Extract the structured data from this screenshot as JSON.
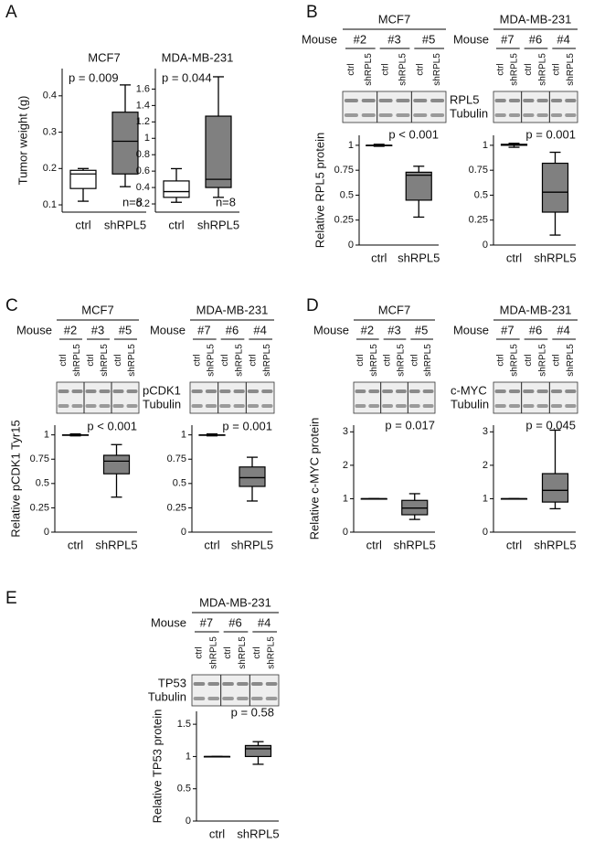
{
  "panel_letters": [
    "A",
    "B",
    "C",
    "D",
    "E"
  ],
  "blots": [
    {
      "cell_line": "MCF7",
      "mouse_label": "Mouse",
      "mice": [
        "#2",
        "#3",
        "#5"
      ],
      "lanes": [
        "ctrl",
        "shRPL5"
      ],
      "proteins": [
        "RPL5",
        "Tubulin"
      ]
    },
    {
      "cell_line": "MDA-MB-231",
      "mouse_label": "Mouse",
      "mice": [
        "#7",
        "#6",
        "#4"
      ],
      "lanes": [
        "ctrl",
        "shRPL5"
      ]
    },
    {
      "cell_line": "MCF7",
      "mouse_label": "Mouse",
      "mice": [
        "#2",
        "#3",
        "#5"
      ],
      "lanes": [
        "ctrl",
        "shRPL5"
      ],
      "proteins": [
        "pCDK1",
        "Tubulin"
      ]
    },
    {
      "cell_line": "MDA-MB-231",
      "mouse_label": "Mouse",
      "mice": [
        "#7",
        "#6",
        "#4"
      ],
      "lanes": [
        "ctrl",
        "shRPL5"
      ]
    },
    {
      "cell_line": "MCF7",
      "mouse_label": "Mouse",
      "mice": [
        "#2",
        "#3",
        "#5"
      ],
      "lanes": [
        "ctrl",
        "shRPL5"
      ],
      "proteins": [
        "c-MYC",
        "Tubulin"
      ]
    },
    {
      "cell_line": "MDA-MB-231",
      "mouse_label": "Mouse",
      "mice": [
        "#7",
        "#6",
        "#4"
      ],
      "lanes": [
        "ctrl",
        "shRPL5"
      ]
    },
    {
      "cell_line": "MDA-MB-231",
      "mouse_label": "Mouse",
      "mice": [
        "#7",
        "#6",
        "#4"
      ],
      "lanes": [
        "ctrl",
        "shRPL5"
      ],
      "proteins": [
        "TP53",
        "Tubulin"
      ]
    }
  ],
  "chart_data": [
    {
      "type": "box",
      "title": "MCF7",
      "ylabel": "Tumor weight (g)",
      "categories": [
        "ctrl",
        "shRPL5"
      ],
      "colors": [
        "#ffffff",
        "#808080"
      ],
      "boxes": [
        {
          "min": 0.11,
          "q1": 0.145,
          "median": 0.185,
          "q3": 0.195,
          "max": 0.2
        },
        {
          "min": 0.15,
          "q1": 0.185,
          "median": 0.275,
          "q3": 0.355,
          "max": 0.43
        }
      ],
      "ylim": [
        0.08,
        0.475
      ],
      "yticks": [
        0.1,
        0.2,
        0.3,
        0.4
      ],
      "annotations": [
        "p = 0.009",
        "n=8"
      ]
    },
    {
      "type": "box",
      "title": "MDA-MB-231",
      "categories": [
        "ctrl",
        "shRPL5"
      ],
      "colors": [
        "#ffffff",
        "#808080"
      ],
      "boxes": [
        {
          "min": 0.22,
          "q1": 0.28,
          "median": 0.35,
          "q3": 0.48,
          "max": 0.63
        },
        {
          "min": 0.28,
          "q1": 0.4,
          "median": 0.5,
          "q3": 1.27,
          "max": 1.75
        }
      ],
      "ylim": [
        0.1,
        1.85
      ],
      "yticks": [
        0.2,
        0.4,
        0.6,
        0.8,
        1,
        1.2,
        1.4,
        1.6
      ],
      "annotations": [
        "p = 0.044",
        "n=8"
      ]
    },
    {
      "type": "box",
      "ylabel": "Relative RPL5 protein",
      "categories": [
        "ctrl",
        "shRPL5"
      ],
      "colors": [
        "#ffffff",
        "#808080"
      ],
      "boxes": [
        {
          "min": 0.99,
          "q1": 1,
          "median": 1,
          "q3": 1,
          "max": 1.01
        },
        {
          "min": 0.28,
          "q1": 0.45,
          "median": 0.7,
          "q3": 0.73,
          "max": 0.79
        }
      ],
      "ylim": [
        0,
        1.1
      ],
      "yticks": [
        0,
        0.25,
        0.5,
        0.75,
        1
      ],
      "annotations": [
        "p < 0.001"
      ]
    },
    {
      "type": "box",
      "categories": [
        "ctrl",
        "shRPL5"
      ],
      "colors": [
        "#ffffff",
        "#808080"
      ],
      "boxes": [
        {
          "min": 0.98,
          "q1": 1,
          "median": 1,
          "q3": 1.01,
          "max": 1.02
        },
        {
          "min": 0.1,
          "q1": 0.33,
          "median": 0.53,
          "q3": 0.82,
          "max": 0.93
        }
      ],
      "ylim": [
        0,
        1.1
      ],
      "yticks": [
        0,
        0.25,
        0.5,
        0.75,
        1
      ],
      "annotations": [
        "p = 0.001"
      ]
    },
    {
      "type": "box",
      "ylabel": "Relative pCDK1 Tyr15",
      "categories": [
        "ctrl",
        "shRPL5"
      ],
      "colors": [
        "#ffffff",
        "#808080"
      ],
      "boxes": [
        {
          "min": 0.99,
          "q1": 1,
          "median": 1,
          "q3": 1,
          "max": 1.01
        },
        {
          "min": 0.36,
          "q1": 0.6,
          "median": 0.73,
          "q3": 0.79,
          "max": 0.9
        }
      ],
      "ylim": [
        0,
        1.1
      ],
      "yticks": [
        0,
        0.25,
        0.5,
        0.75,
        1
      ],
      "annotations": [
        "p < 0.001"
      ]
    },
    {
      "type": "box",
      "categories": [
        "ctrl",
        "shRPL5"
      ],
      "colors": [
        "#ffffff",
        "#808080"
      ],
      "boxes": [
        {
          "min": 0.99,
          "q1": 1,
          "median": 1,
          "q3": 1,
          "max": 1.01
        },
        {
          "min": 0.32,
          "q1": 0.47,
          "median": 0.56,
          "q3": 0.67,
          "max": 0.77
        }
      ],
      "ylim": [
        0,
        1.1
      ],
      "yticks": [
        0,
        0.25,
        0.5,
        0.75,
        1
      ],
      "annotations": [
        "p = 0.001"
      ]
    },
    {
      "type": "box",
      "ylabel": "Relative c-MYC protein",
      "categories": [
        "ctrl",
        "shRPL5"
      ],
      "colors": [
        "#ffffff",
        "#808080"
      ],
      "boxes": [
        {
          "min": 1,
          "q1": 1,
          "median": 1,
          "q3": 1,
          "max": 1
        },
        {
          "min": 0.38,
          "q1": 0.52,
          "median": 0.72,
          "q3": 0.95,
          "max": 1.15
        }
      ],
      "ylim": [
        0,
        3.2
      ],
      "yticks": [
        0,
        1,
        2,
        3
      ],
      "annotations": [
        "p = 0.017"
      ]
    },
    {
      "type": "box",
      "categories": [
        "ctrl",
        "shRPL5"
      ],
      "colors": [
        "#ffffff",
        "#808080"
      ],
      "boxes": [
        {
          "min": 1,
          "q1": 1,
          "median": 1,
          "q3": 1,
          "max": 1
        },
        {
          "min": 0.7,
          "q1": 0.9,
          "median": 1.25,
          "q3": 1.75,
          "max": 3.05
        }
      ],
      "ylim": [
        0,
        3.2
      ],
      "yticks": [
        0,
        1,
        2,
        3
      ],
      "annotations": [
        "p = 0.045"
      ]
    },
    {
      "type": "box",
      "ylabel": "Relative TP53 protein",
      "categories": [
        "ctrl",
        "shRPL5"
      ],
      "colors": [
        "#ffffff",
        "#808080"
      ],
      "boxes": [
        {
          "min": 1,
          "q1": 1,
          "median": 1,
          "q3": 1,
          "max": 1
        },
        {
          "min": 0.88,
          "q1": 1,
          "median": 1.12,
          "q3": 1.17,
          "max": 1.23
        }
      ],
      "ylim": [
        0,
        1.7
      ],
      "yticks": [
        0,
        0.5,
        1,
        1.5
      ],
      "annotations": [
        "p = 0.58"
      ]
    }
  ]
}
